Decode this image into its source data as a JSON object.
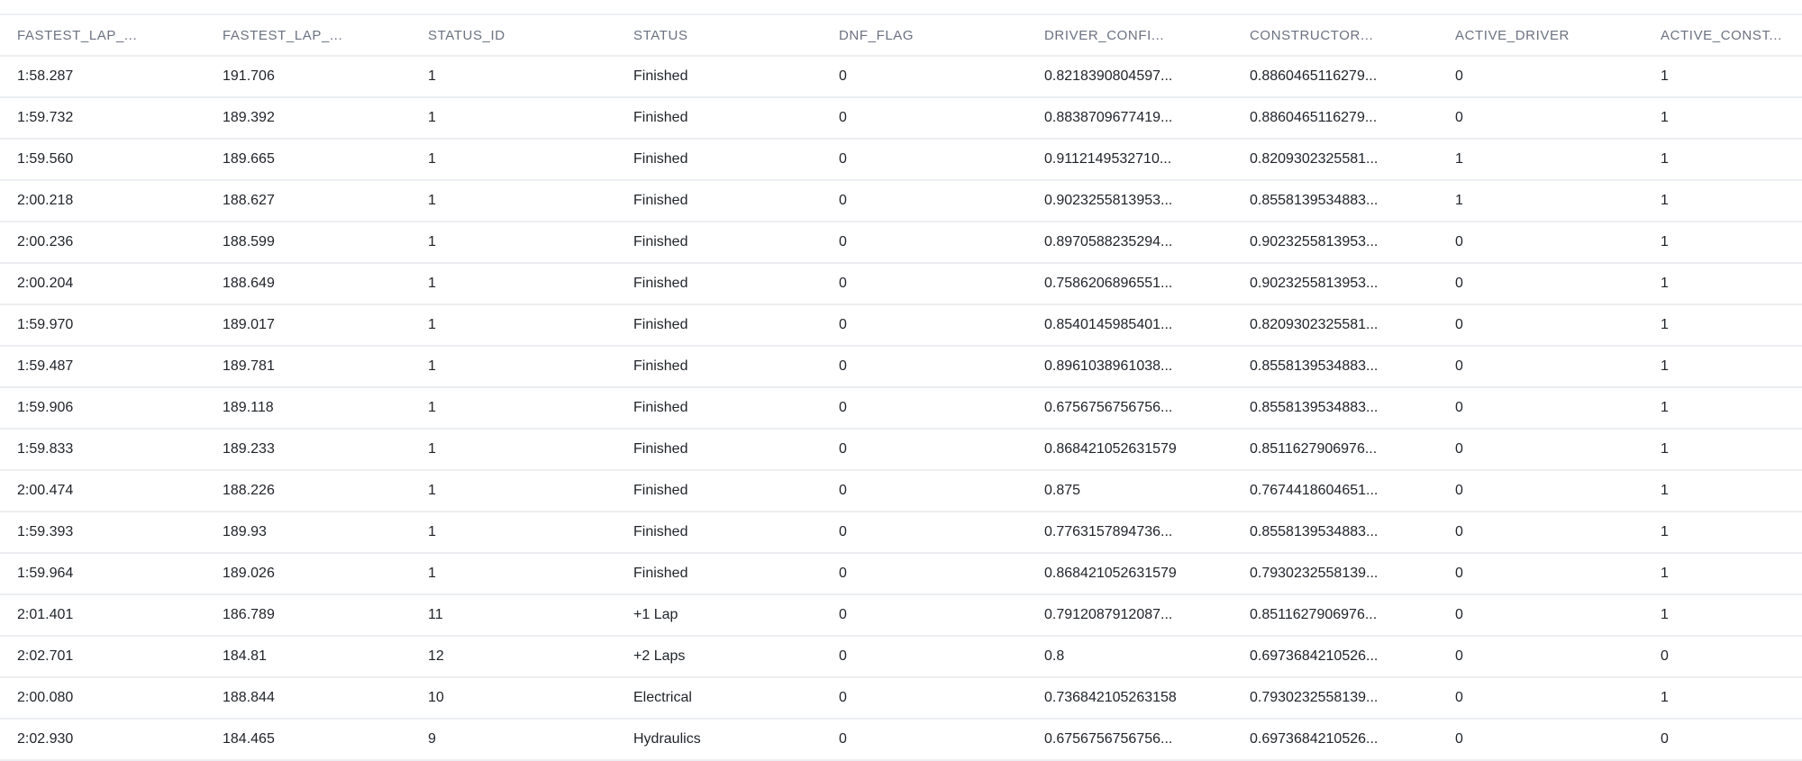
{
  "table": {
    "columns": [
      "FASTEST_LAP_...",
      "FASTEST_LAP_...",
      "STATUS_ID",
      "STATUS",
      "DNF_FLAG",
      "DRIVER_CONFI...",
      "CONSTRUCTOR...",
      "ACTIVE_DRIVER",
      "ACTIVE_CONST..."
    ],
    "rows": [
      [
        "1:58.287",
        "191.706",
        "1",
        "Finished",
        "0",
        "0.8218390804597...",
        "0.8860465116279...",
        "0",
        "1"
      ],
      [
        "1:59.732",
        "189.392",
        "1",
        "Finished",
        "0",
        "0.8838709677419...",
        "0.8860465116279...",
        "0",
        "1"
      ],
      [
        "1:59.560",
        "189.665",
        "1",
        "Finished",
        "0",
        "0.9112149532710...",
        "0.8209302325581...",
        "1",
        "1"
      ],
      [
        "2:00.218",
        "188.627",
        "1",
        "Finished",
        "0",
        "0.9023255813953...",
        "0.8558139534883...",
        "1",
        "1"
      ],
      [
        "2:00.236",
        "188.599",
        "1",
        "Finished",
        "0",
        "0.8970588235294...",
        "0.9023255813953...",
        "0",
        "1"
      ],
      [
        "2:00.204",
        "188.649",
        "1",
        "Finished",
        "0",
        "0.7586206896551...",
        "0.9023255813953...",
        "0",
        "1"
      ],
      [
        "1:59.970",
        "189.017",
        "1",
        "Finished",
        "0",
        "0.8540145985401...",
        "0.8209302325581...",
        "0",
        "1"
      ],
      [
        "1:59.487",
        "189.781",
        "1",
        "Finished",
        "0",
        "0.8961038961038...",
        "0.8558139534883...",
        "0",
        "1"
      ],
      [
        "1:59.906",
        "189.118",
        "1",
        "Finished",
        "0",
        "0.6756756756756...",
        "0.8558139534883...",
        "0",
        "1"
      ],
      [
        "1:59.833",
        "189.233",
        "1",
        "Finished",
        "0",
        "0.868421052631579",
        "0.8511627906976...",
        "0",
        "1"
      ],
      [
        "2:00.474",
        "188.226",
        "1",
        "Finished",
        "0",
        "0.875",
        "0.7674418604651...",
        "0",
        "1"
      ],
      [
        "1:59.393",
        "189.93",
        "1",
        "Finished",
        "0",
        "0.7763157894736...",
        "0.8558139534883...",
        "0",
        "1"
      ],
      [
        "1:59.964",
        "189.026",
        "1",
        "Finished",
        "0",
        "0.868421052631579",
        "0.7930232558139...",
        "0",
        "1"
      ],
      [
        "2:01.401",
        "186.789",
        "11",
        "+1 Lap",
        "0",
        "0.7912087912087...",
        "0.8511627906976...",
        "0",
        "1"
      ],
      [
        "2:02.701",
        "184.81",
        "12",
        "+2 Laps",
        "0",
        "0.8",
        "0.6973684210526...",
        "0",
        "0"
      ],
      [
        "2:00.080",
        "188.844",
        "10",
        "Electrical",
        "0",
        "0.736842105263158",
        "0.7930232558139...",
        "0",
        "1"
      ],
      [
        "2:02.930",
        "184.465",
        "9",
        "Hydraulics",
        "0",
        "0.6756756756756...",
        "0.6973684210526...",
        "0",
        "0"
      ]
    ]
  }
}
